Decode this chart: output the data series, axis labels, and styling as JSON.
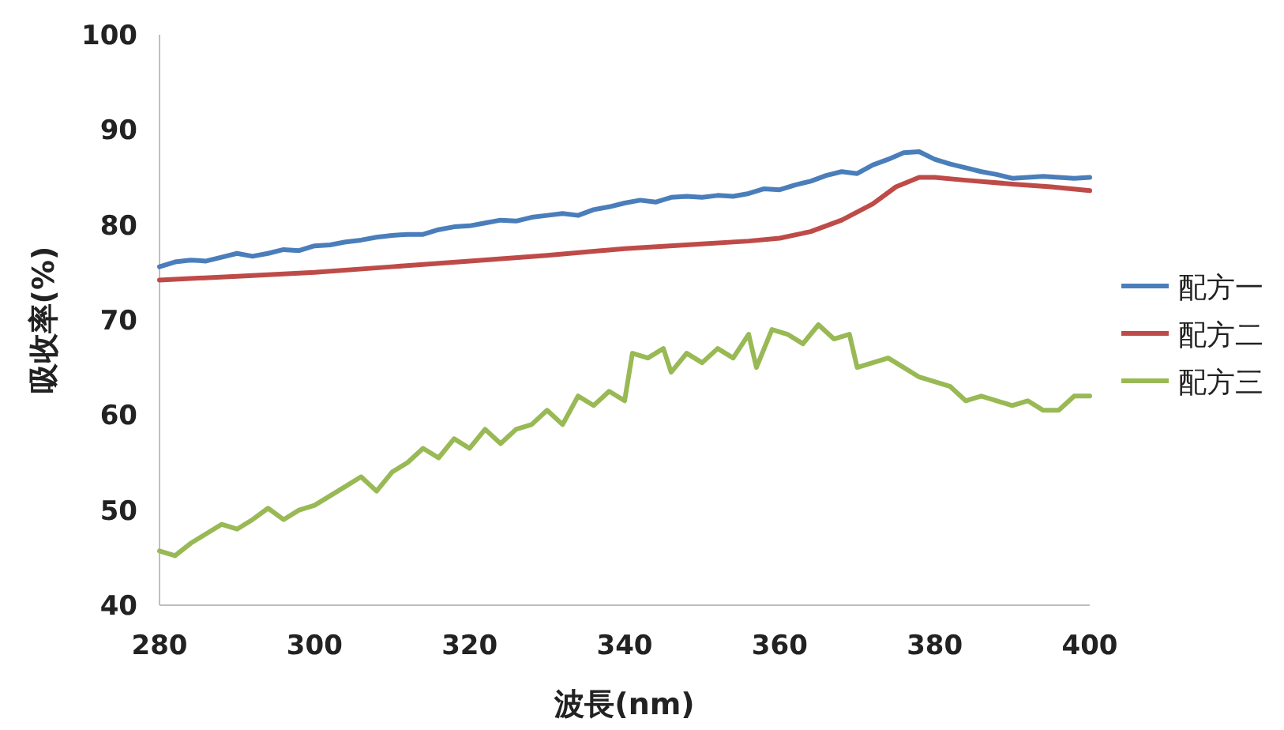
{
  "chart_data": {
    "type": "line",
    "xlabel": "波長(nm)",
    "ylabel": "吸收率(%)",
    "xlim": [
      280,
      400
    ],
    "xticks": [
      280,
      300,
      320,
      340,
      360,
      380,
      400
    ],
    "ylim": [
      40,
      100
    ],
    "yticks": [
      40,
      50,
      60,
      70,
      80,
      90,
      100
    ],
    "grid": false,
    "legend": "right",
    "marker": "none",
    "line_style": "solid",
    "series": [
      {
        "name": "配方一",
        "color": "#4a7ebb",
        "x": [
          280,
          282,
          284,
          286,
          288,
          290,
          292,
          294,
          296,
          298,
          300,
          302,
          304,
          306,
          308,
          310,
          312,
          314,
          316,
          318,
          320,
          322,
          324,
          326,
          328,
          330,
          332,
          334,
          336,
          338,
          340,
          342,
          344,
          346,
          348,
          350,
          352,
          354,
          356,
          358,
          360,
          362,
          364,
          366,
          368,
          370,
          372,
          374,
          376,
          378,
          380,
          382,
          384,
          386,
          388,
          390,
          392,
          394,
          396,
          398,
          400
        ],
        "values": [
          75.6,
          76.1,
          76.3,
          76.2,
          76.6,
          77.0,
          76.7,
          77.0,
          77.4,
          77.3,
          77.8,
          77.9,
          78.2,
          78.4,
          78.7,
          78.9,
          79.0,
          79.0,
          79.5,
          79.8,
          79.9,
          80.2,
          80.5,
          80.4,
          80.8,
          81.0,
          81.2,
          81.0,
          81.6,
          81.9,
          82.3,
          82.6,
          82.4,
          82.9,
          83.0,
          82.9,
          83.1,
          83.0,
          83.3,
          83.8,
          83.7,
          84.2,
          84.6,
          85.2,
          85.6,
          85.4,
          86.3,
          86.9,
          87.6,
          87.7,
          86.9,
          86.4,
          86.0,
          85.6,
          85.3,
          84.9,
          85.0,
          85.1,
          85.0,
          84.9,
          85.0
        ]
      },
      {
        "name": "配方二",
        "color": "#be4b48",
        "x": [
          280,
          290,
          300,
          310,
          320,
          330,
          340,
          350,
          356,
          360,
          364,
          368,
          372,
          375,
          378,
          380,
          384,
          390,
          395,
          400
        ],
        "values": [
          74.2,
          74.6,
          75.0,
          75.6,
          76.2,
          76.8,
          77.5,
          78.0,
          78.3,
          78.6,
          79.3,
          80.5,
          82.2,
          84.0,
          85.0,
          85.0,
          84.7,
          84.3,
          84.0,
          83.6
        ]
      },
      {
        "name": "配方三",
        "color": "#98b954",
        "x": [
          280,
          282,
          284,
          286,
          288,
          290,
          292,
          294,
          296,
          298,
          300,
          302,
          304,
          306,
          308,
          310,
          312,
          314,
          316,
          318,
          320,
          322,
          324,
          326,
          328,
          330,
          332,
          334,
          336,
          338,
          340,
          341,
          343,
          345,
          346,
          348,
          350,
          352,
          354,
          356,
          357,
          359,
          361,
          363,
          365,
          367,
          369,
          370,
          372,
          374,
          376,
          378,
          380,
          382,
          384,
          386,
          388,
          390,
          392,
          394,
          396,
          398,
          400
        ],
        "values": [
          45.7,
          45.2,
          46.5,
          47.5,
          48.5,
          48.0,
          49.0,
          50.2,
          49.0,
          50.0,
          50.5,
          51.5,
          52.5,
          53.5,
          52.0,
          54.0,
          55.0,
          56.5,
          55.5,
          57.5,
          56.5,
          58.5,
          57.0,
          58.5,
          59.0,
          60.5,
          59.0,
          62.0,
          61.0,
          62.5,
          61.5,
          66.5,
          66.0,
          67.0,
          64.5,
          66.5,
          65.5,
          67.0,
          66.0,
          68.5,
          65.0,
          69.0,
          68.5,
          67.5,
          69.5,
          68.0,
          68.5,
          65.0,
          65.5,
          66.0,
          65.0,
          64.0,
          63.5,
          63.0,
          61.5,
          62.0,
          61.5,
          61.0,
          61.5,
          60.5,
          60.5,
          62.0,
          62.0
        ]
      }
    ]
  }
}
